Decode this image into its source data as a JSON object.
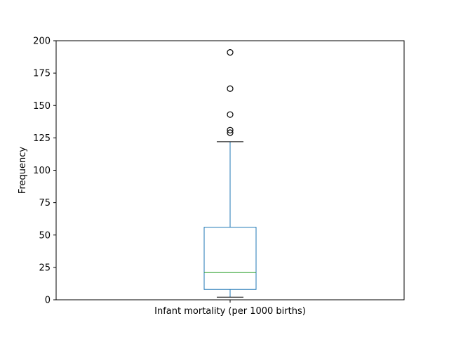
{
  "chart_data": {
    "type": "box",
    "title": "",
    "xlabel": "",
    "ylabel": "Frequency",
    "categories": [
      "Infant mortality (per 1000 births)"
    ],
    "ylim": [
      0,
      200
    ],
    "yticks": [
      0,
      25,
      50,
      75,
      100,
      125,
      150,
      175,
      200
    ],
    "grid": false,
    "legend": "none",
    "series": [
      {
        "whisker_low": 2,
        "q1": 8,
        "median": 21,
        "q3": 56,
        "whisker_high": 122,
        "outliers": [
          129,
          131,
          143,
          163,
          191
        ]
      }
    ],
    "colors": {
      "box": "#1f77b4",
      "median": "#2ca02c",
      "caps": "#000000",
      "outlier": "#000000"
    }
  }
}
